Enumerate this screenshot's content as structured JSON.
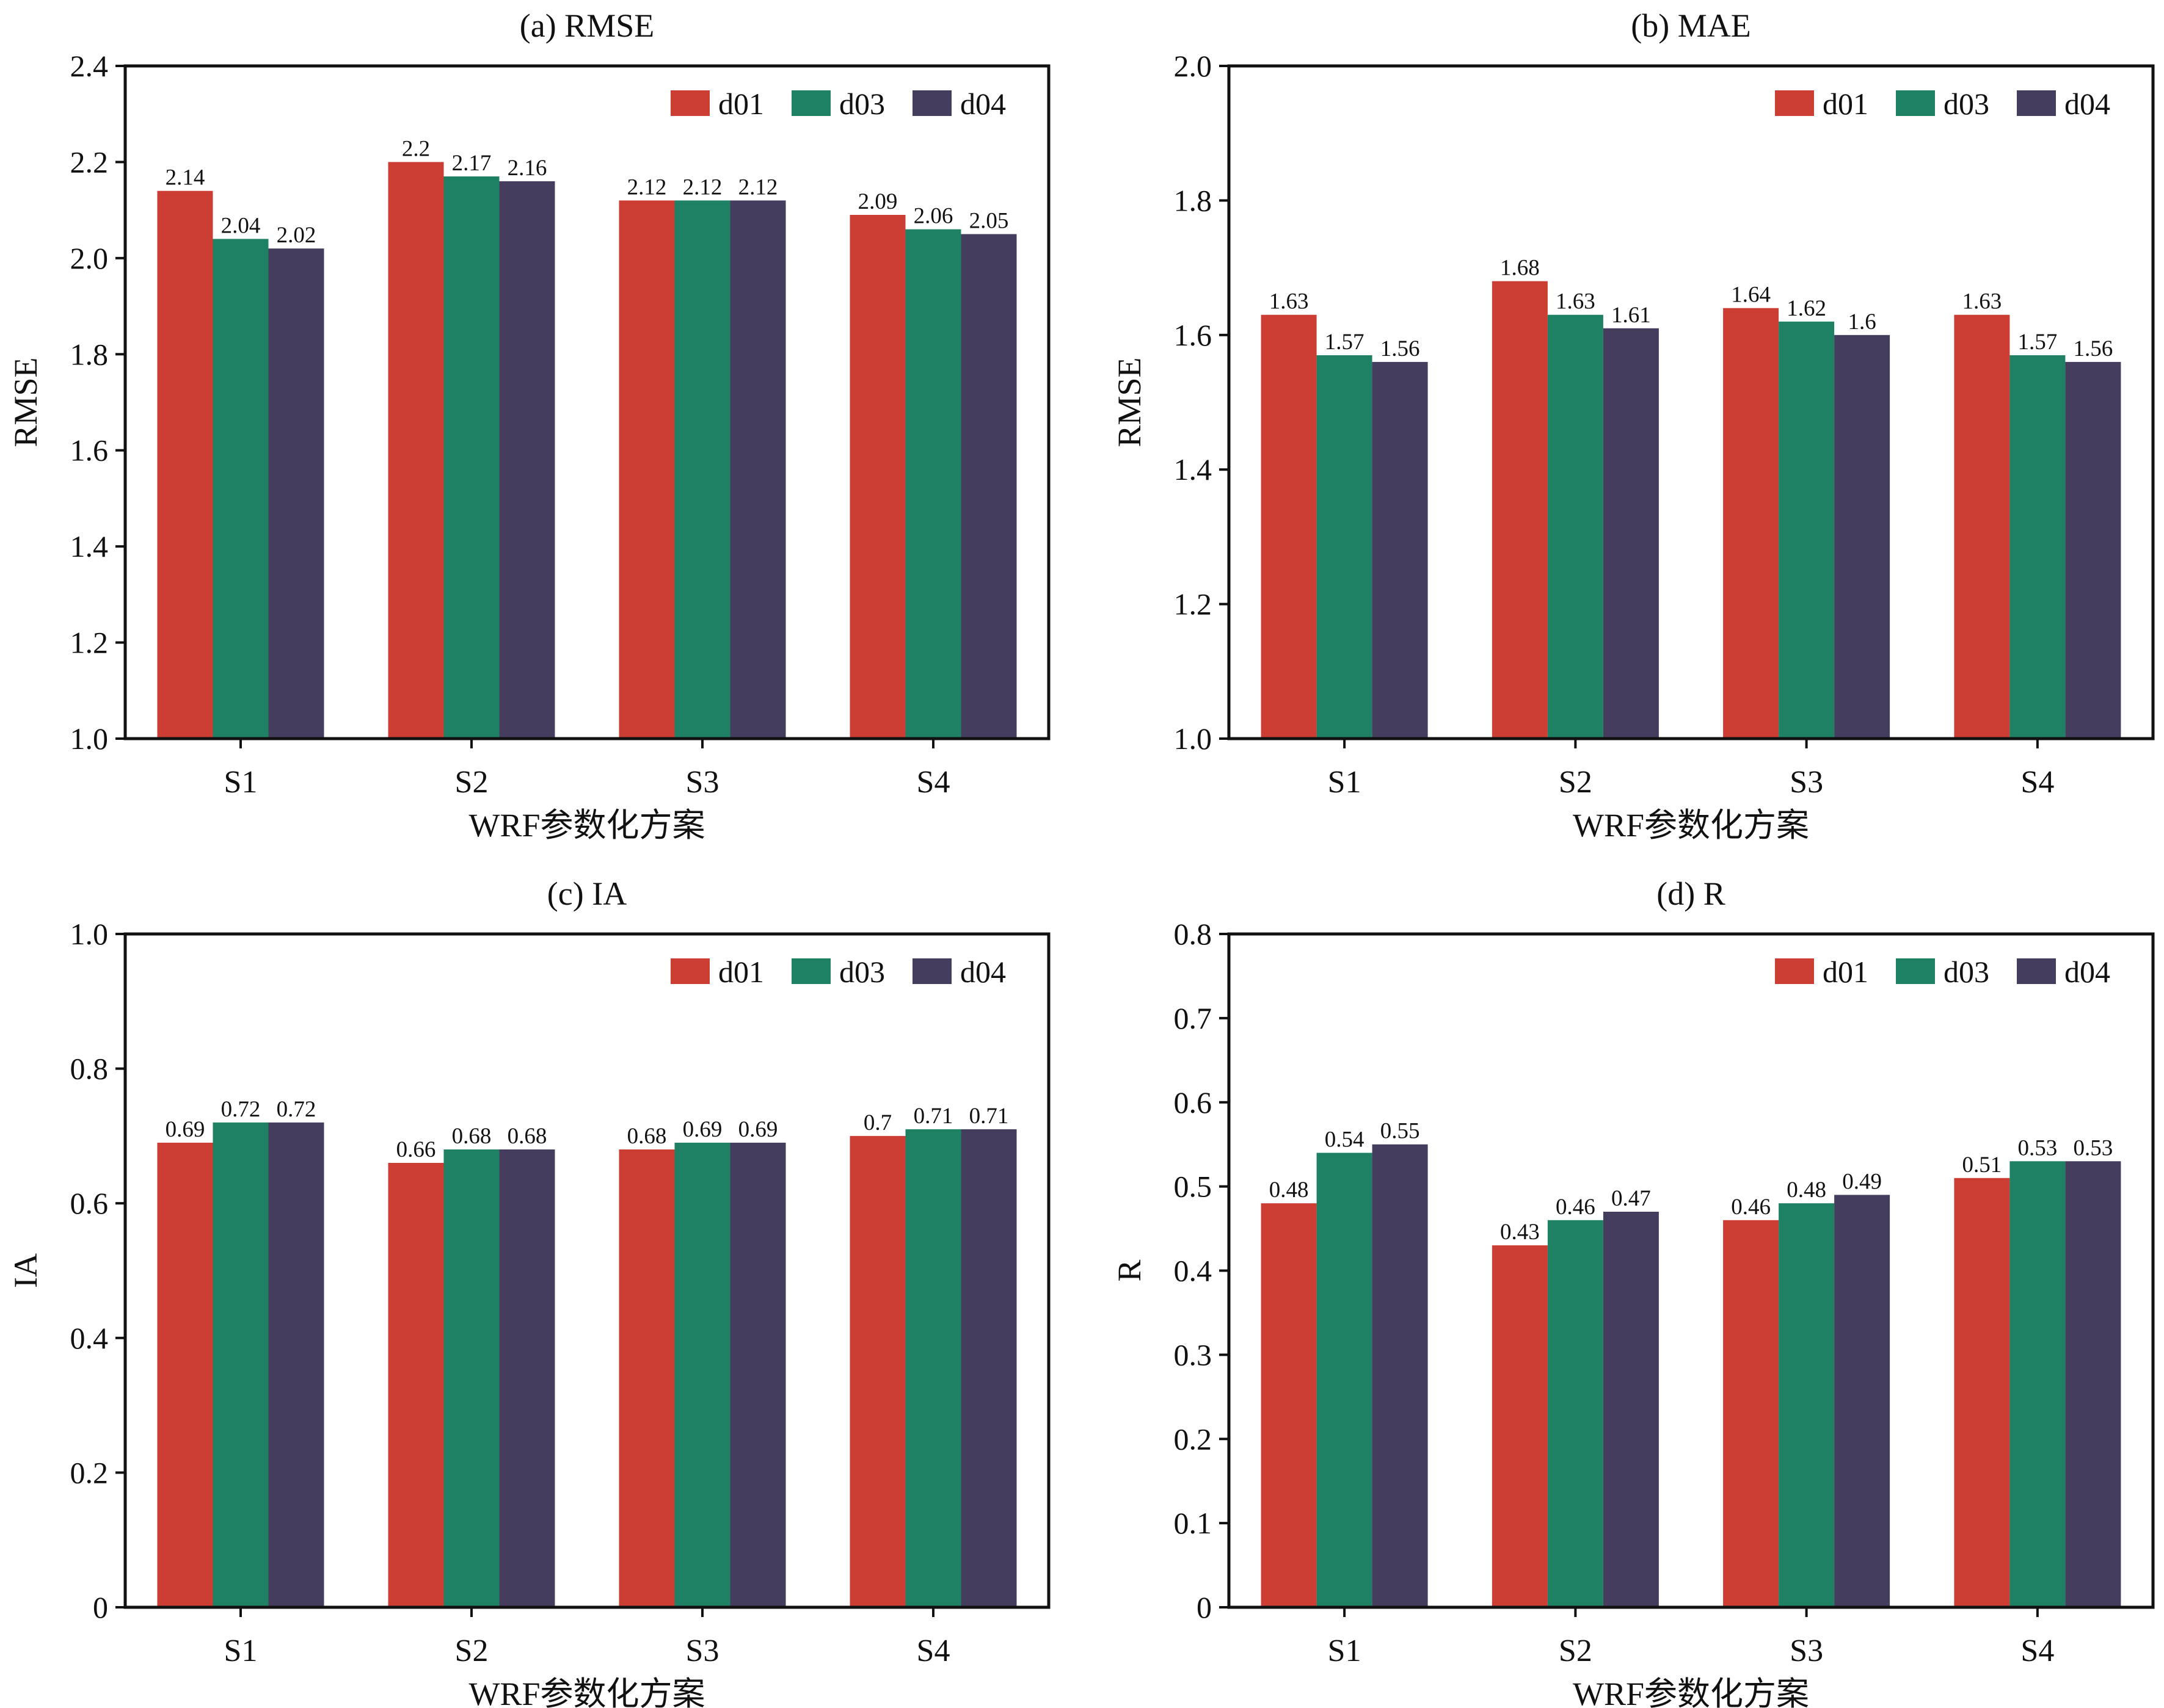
{
  "colors": {
    "d01": "#cc3d33",
    "d03": "#1f8163",
    "d04": "#453d5e",
    "axis": "#111111"
  },
  "chart_data": [
    {
      "type": "bar",
      "title": "(a) RMSE",
      "xlabel": "WRF参数化方案",
      "ylabel": "RMSE",
      "ylim": [
        1.0,
        2.4
      ],
      "yticks": [
        "1.0",
        "1.2",
        "1.4",
        "1.6",
        "1.8",
        "2.0",
        "2.2",
        "2.4"
      ],
      "categories": [
        "S1",
        "S2",
        "S3",
        "S4"
      ],
      "legend_position": "top-right",
      "grid": false,
      "series": [
        {
          "name": "d01",
          "values": [
            2.14,
            2.2,
            2.12,
            2.09
          ],
          "labels": [
            "2.14",
            "2.2",
            "2.12",
            "2.09"
          ]
        },
        {
          "name": "d03",
          "values": [
            2.04,
            2.17,
            2.12,
            2.06
          ],
          "labels": [
            "2.04",
            "2.17",
            "2.12",
            "2.06"
          ]
        },
        {
          "name": "d04",
          "values": [
            2.02,
            2.16,
            2.12,
            2.05
          ],
          "labels": [
            "2.02",
            "2.16",
            "2.12",
            "2.05"
          ]
        }
      ]
    },
    {
      "type": "bar",
      "title": "(b) MAE",
      "xlabel": "WRF参数化方案",
      "ylabel": "RMSE",
      "ylim": [
        1.0,
        2.0
      ],
      "yticks": [
        "1.0",
        "1.2",
        "1.4",
        "1.6",
        "1.8",
        "2.0"
      ],
      "categories": [
        "S1",
        "S2",
        "S3",
        "S4"
      ],
      "legend_position": "top-right",
      "grid": false,
      "series": [
        {
          "name": "d01",
          "values": [
            1.63,
            1.68,
            1.64,
            1.63
          ],
          "labels": [
            "1.63",
            "1.68",
            "1.64",
            "1.63"
          ]
        },
        {
          "name": "d03",
          "values": [
            1.57,
            1.63,
            1.62,
            1.57
          ],
          "labels": [
            "1.57",
            "1.63",
            "1.62",
            "1.57"
          ]
        },
        {
          "name": "d04",
          "values": [
            1.56,
            1.61,
            1.6,
            1.56
          ],
          "labels": [
            "1.56",
            "1.61",
            "1.6",
            "1.56"
          ]
        }
      ]
    },
    {
      "type": "bar",
      "title": "(c) IA",
      "xlabel": "WRF参数化方案",
      "ylabel": "IA",
      "ylim": [
        0,
        1.0
      ],
      "yticks": [
        "0",
        "0.2",
        "0.4",
        "0.6",
        "0.8",
        "1.0"
      ],
      "categories": [
        "S1",
        "S2",
        "S3",
        "S4"
      ],
      "legend_position": "top-right",
      "grid": false,
      "series": [
        {
          "name": "d01",
          "values": [
            0.69,
            0.66,
            0.68,
            0.7
          ],
          "labels": [
            "0.69",
            "0.66",
            "0.68",
            "0.7"
          ]
        },
        {
          "name": "d03",
          "values": [
            0.72,
            0.68,
            0.69,
            0.71
          ],
          "labels": [
            "0.72",
            "0.68",
            "0.69",
            "0.71"
          ]
        },
        {
          "name": "d04",
          "values": [
            0.72,
            0.68,
            0.69,
            0.71
          ],
          "labels": [
            "0.72",
            "0.68",
            "0.69",
            "0.71"
          ]
        }
      ]
    },
    {
      "type": "bar",
      "title": "(d) R",
      "xlabel": "WRF参数化方案",
      "ylabel": "R",
      "ylim": [
        0,
        0.8
      ],
      "yticks": [
        "0",
        "0.1",
        "0.2",
        "0.3",
        "0.4",
        "0.5",
        "0.6",
        "0.7",
        "0.8"
      ],
      "categories": [
        "S1",
        "S2",
        "S3",
        "S4"
      ],
      "legend_position": "top-right",
      "grid": false,
      "series": [
        {
          "name": "d01",
          "values": [
            0.48,
            0.43,
            0.46,
            0.51
          ],
          "labels": [
            "0.48",
            "0.43",
            "0.46",
            "0.51"
          ]
        },
        {
          "name": "d03",
          "values": [
            0.54,
            0.46,
            0.48,
            0.53
          ],
          "labels": [
            "0.54",
            "0.46",
            "0.48",
            "0.53"
          ]
        },
        {
          "name": "d04",
          "values": [
            0.55,
            0.47,
            0.49,
            0.53
          ],
          "labels": [
            "0.55",
            "0.47",
            "0.49",
            "0.53"
          ]
        }
      ]
    }
  ]
}
